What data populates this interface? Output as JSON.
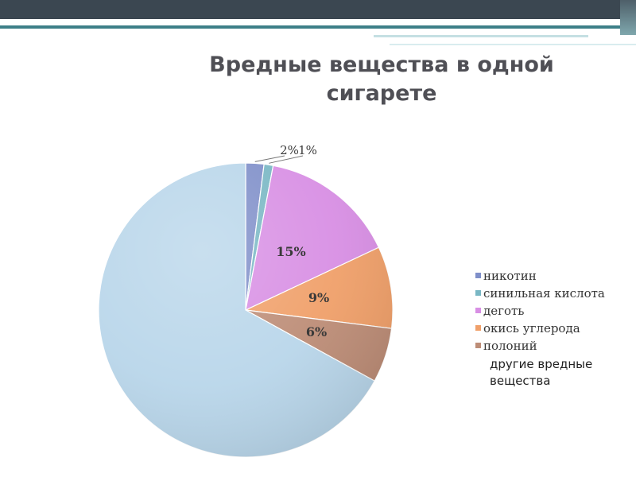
{
  "chart_data": {
    "type": "pie",
    "title": "Вредные вещества в одной сигарете",
    "categories": [
      "никотин",
      "синильная кислота",
      "деготь",
      "окись углерода",
      "полоний",
      "другие вредные вещества"
    ],
    "values": [
      2,
      1,
      15,
      9,
      6,
      67
    ],
    "data_labels": [
      "2%",
      "1%",
      "15%",
      "9%",
      "6%",
      ""
    ],
    "colors": [
      "#7f8fc9",
      "#79b7c4",
      "#d88fe4",
      "#f0a06a",
      "#bd8d77",
      "#b9d6ea"
    ],
    "legend": "right"
  }
}
